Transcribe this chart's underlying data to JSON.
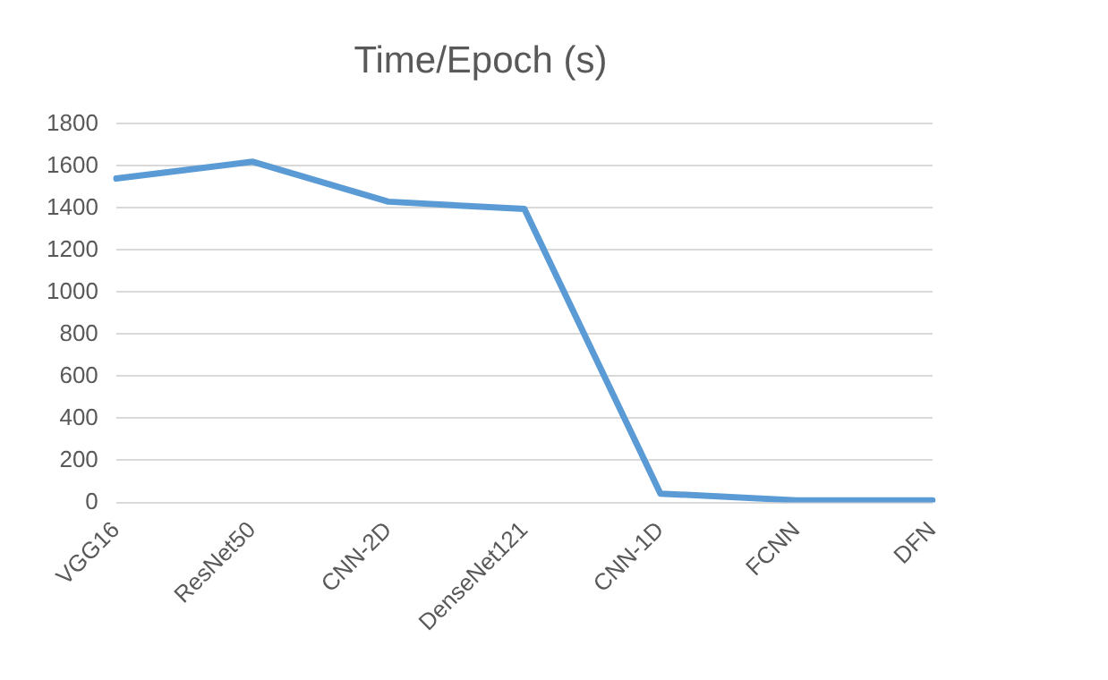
{
  "chart_data": {
    "type": "line",
    "title": "Time/Epoch (s)",
    "categories": [
      "VGG16",
      "ResNet50",
      "CNN-2D",
      "DenseNet121",
      "CNN-1D",
      "FCNN",
      "DFN"
    ],
    "series": [
      {
        "color": "#5b9bd5",
        "values": [
          1540,
          1620,
          1430,
          1395,
          42,
          10,
          10
        ]
      }
    ],
    "ylim": [
      0,
      1800
    ],
    "yticks": [
      0,
      200,
      400,
      600,
      800,
      1000,
      1200,
      1400,
      1600,
      1800
    ],
    "grid": "y",
    "legend": false,
    "marker": "none",
    "line_style": "solid"
  }
}
